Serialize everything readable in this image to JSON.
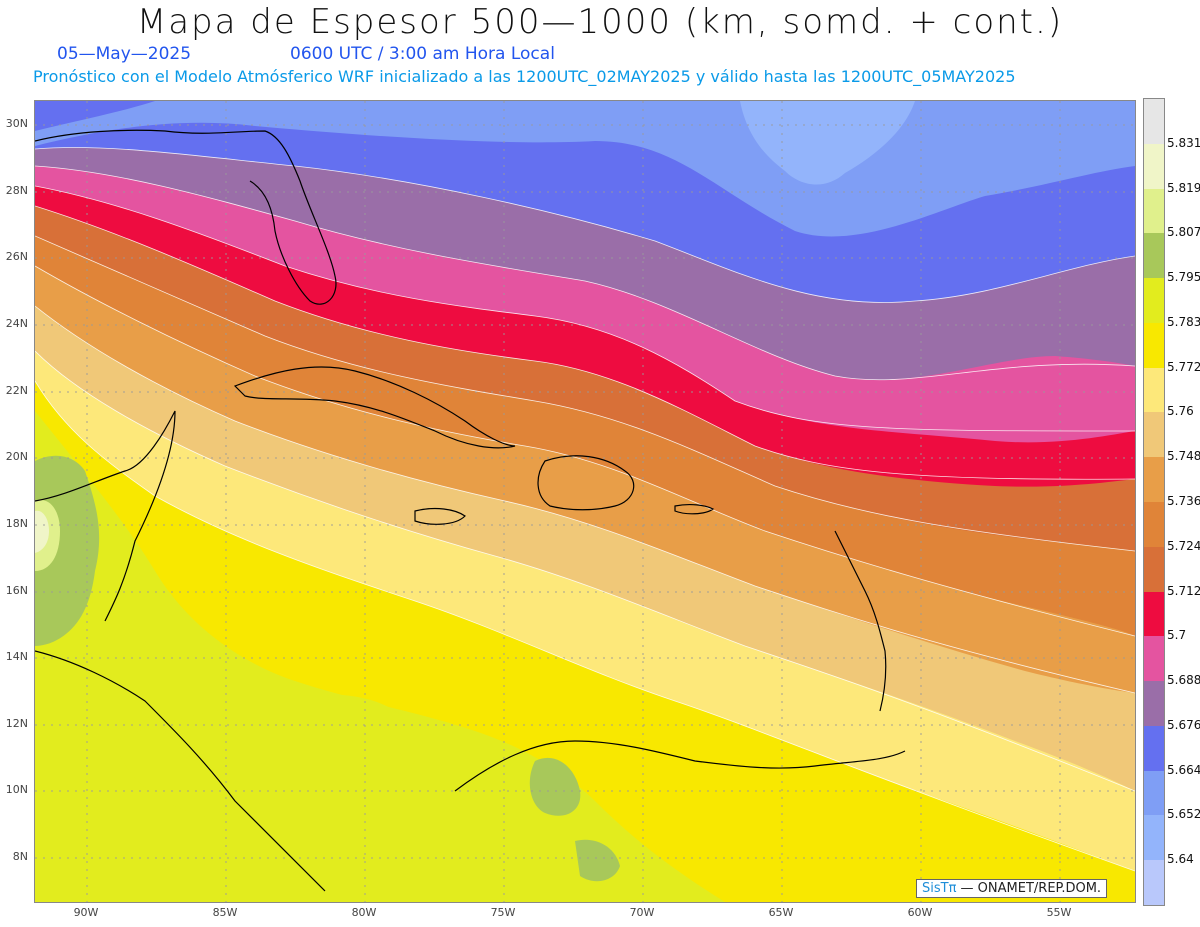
{
  "title": "Mapa de Espesor 500—1000 (km, somd. + cont.)",
  "date": "05—May—2025",
  "time": "0600 UTC / 3:00 am Hora Local",
  "subtitle": "Pronóstico con el Modelo Atmósferico WRF inicializado a las 1200UTC_02MAY2025 y válido hasta las  1200UTC_05MAY2025",
  "credit": {
    "brand": "SisTπ",
    "org": "— ONAMET/REP.DOM."
  },
  "lat_labels": [
    "30N",
    "28N",
    "26N",
    "24N",
    "22N",
    "20N",
    "18N",
    "16N",
    "14N",
    "12N",
    "10N",
    "8N"
  ],
  "lon_labels": [
    "90W",
    "85W",
    "80W",
    "75W",
    "70W",
    "65W",
    "60W",
    "55W"
  ],
  "colorbar": {
    "labels": [
      "5.831",
      "5.819",
      "5.807",
      "5.795",
      "5.783",
      "5.772",
      "5.76",
      "5.748",
      "5.736",
      "5.724",
      "5.712",
      "5.7",
      "5.688",
      "5.676",
      "5.664",
      "5.652",
      "5.64"
    ],
    "colors": [
      "#e6e6e6",
      "#f0f5c8",
      "#e0f08c",
      "#a8c85a",
      "#e2ec1e",
      "#f8e800",
      "#fde87a",
      "#f0c878",
      "#e89e48",
      "#e08438",
      "#d87038",
      "#ee0c40",
      "#e454a0",
      "#9a6ea8",
      "#6470f0",
      "#7f9ef5",
      "#93b4fb",
      "#b9c8fb"
    ]
  }
}
